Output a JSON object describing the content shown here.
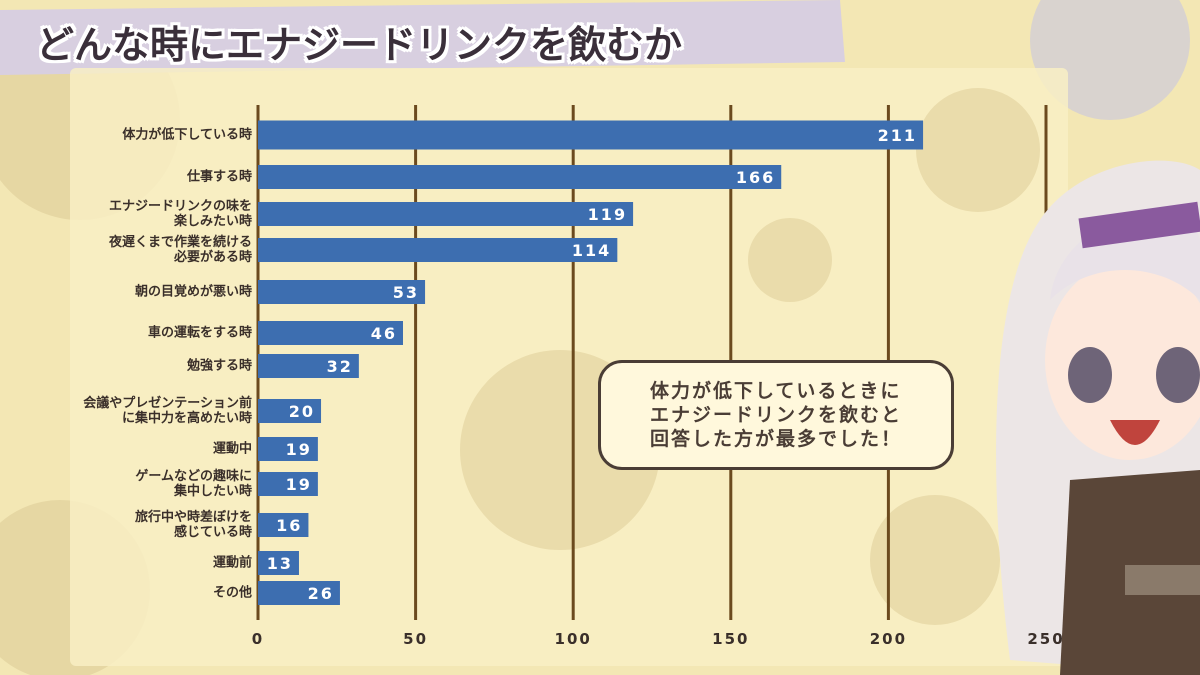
{
  "chart_data": {
    "type": "bar",
    "orientation": "horizontal",
    "title": "どんな時にエナジードリンクを飲むか",
    "categories": [
      "体力が低下している時",
      "仕事する時",
      "エナジードリンクの味を\n楽しみたい時",
      "夜遅くまで作業を続ける\n必要がある時",
      "朝の目覚めが悪い時",
      "車の運転をする時",
      "勉強する時",
      "会議やプレゼンテーション前\nに集中力を高めたい時",
      "運動中",
      "ゲームなどの趣味に\n集中したい時",
      "旅行中や時差ぼけを\n感じている時",
      "運動前",
      "その他"
    ],
    "values": [
      211,
      166,
      119,
      114,
      53,
      46,
      32,
      20,
      19,
      19,
      16,
      13,
      26
    ],
    "color": "#3d6eb0",
    "xlim": [
      0,
      250
    ],
    "xticks": [
      0,
      50,
      100,
      150,
      200,
      250
    ],
    "grid": true,
    "annotation": "体力が低下しているときに\nエナジードリンクを飲むと\n回答した方が最多でした！"
  }
}
